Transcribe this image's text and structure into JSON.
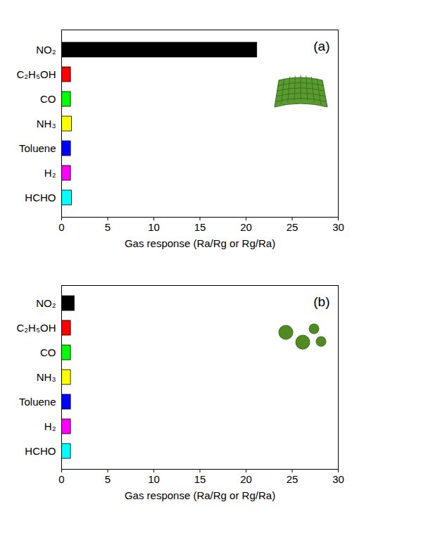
{
  "chart_data": [
    {
      "type": "bar",
      "orientation": "horizontal",
      "title": "(a)",
      "categories": [
        "NO₂",
        "C₂H₅OH",
        "CO",
        "NH₃",
        "Toluene",
        "H₂",
        "HCHO"
      ],
      "values": [
        21.2,
        1.0,
        1.0,
        1.1,
        1.0,
        1.0,
        1.1
      ],
      "colors": [
        "#000000",
        "#ff0000",
        "#00ff00",
        "#ffff00",
        "#0000ff",
        "#ff00ff",
        "#00ffff"
      ],
      "xlabel": "Gas response (Ra/Rg or Rg/Ra)",
      "xlim": [
        0,
        30
      ],
      "xticks": [
        0,
        5,
        10,
        15,
        20,
        25,
        30
      ]
    },
    {
      "type": "bar",
      "orientation": "horizontal",
      "title": "(b)",
      "categories": [
        "NO₂",
        "C₂H₅OH",
        "CO",
        "NH₃",
        "Toluene",
        "H₂",
        "HCHO"
      ],
      "values": [
        1.4,
        1.0,
        1.0,
        1.0,
        1.0,
        1.0,
        1.0
      ],
      "colors": [
        "#000000",
        "#ff0000",
        "#00ff00",
        "#ffff00",
        "#0000ff",
        "#ff00ff",
        "#00ffff"
      ],
      "xlabel": "Gas response (Ra/Rg or Rg/Ra)",
      "xlim": [
        0,
        30
      ],
      "xticks": [
        0,
        5,
        10,
        15,
        20,
        25,
        30
      ]
    }
  ]
}
